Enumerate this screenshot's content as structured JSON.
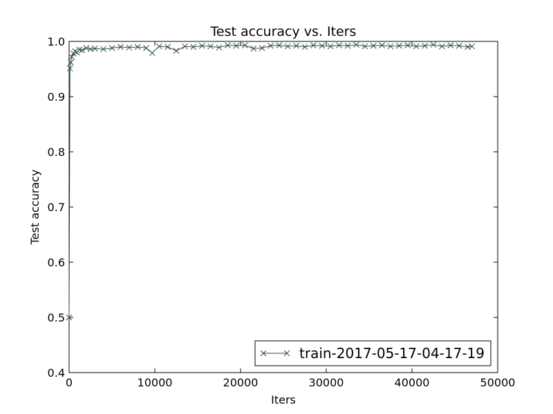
{
  "chart_data": {
    "type": "line",
    "title": "Test accuracy  vs. Iters",
    "xlabel": "Iters",
    "ylabel": "Test accuracy",
    "xlim": [
      0,
      50000
    ],
    "ylim": [
      0.4,
      1.0
    ],
    "xticks": [
      0,
      10000,
      20000,
      30000,
      40000,
      50000
    ],
    "yticks": [
      0.4,
      0.5,
      0.6,
      0.7,
      0.8,
      0.9,
      1.0
    ],
    "xtick_labels": [
      "0",
      "10000",
      "20000",
      "30000",
      "40000",
      "50000"
    ],
    "ytick_labels": [
      "0.4",
      "0.5",
      "0.6",
      "0.7",
      "0.8",
      "0.9",
      "1.0"
    ],
    "grid": false,
    "legend_position": "lower-right",
    "marker": "x",
    "series_color": "#2f4f3f",
    "series": [
      {
        "name": "train-2017-05-17-04-17-19",
        "x": [
          0,
          100,
          200,
          300,
          500,
          700,
          900,
          1200,
          1500,
          2000,
          2500,
          3000,
          4000,
          5000,
          6000,
          7000,
          8000,
          9000,
          9700,
          10500,
          11500,
          12500,
          13500,
          14500,
          15500,
          16500,
          17500,
          18500,
          19500,
          20500,
          21500,
          22500,
          23500,
          24500,
          25500,
          26500,
          27500,
          28500,
          29500,
          30500,
          31500,
          32500,
          33500,
          34500,
          35500,
          36500,
          37500,
          38500,
          39500,
          40500,
          41500,
          42500,
          43500,
          44500,
          45500,
          46500,
          47000
        ],
        "y": [
          0.5,
          0.951,
          0.962,
          0.972,
          0.978,
          0.982,
          0.98,
          0.985,
          0.984,
          0.988,
          0.986,
          0.987,
          0.986,
          0.988,
          0.99,
          0.989,
          0.99,
          0.988,
          0.979,
          0.991,
          0.99,
          0.983,
          0.991,
          0.99,
          0.992,
          0.991,
          0.989,
          0.993,
          0.992,
          0.993,
          0.987,
          0.988,
          0.992,
          0.993,
          0.991,
          0.992,
          0.99,
          0.993,
          0.992,
          0.991,
          0.993,
          0.992,
          0.994,
          0.991,
          0.992,
          0.993,
          0.991,
          0.992,
          0.993,
          0.991,
          0.992,
          0.994,
          0.991,
          0.993,
          0.992,
          0.99,
          0.991
        ]
      }
    ]
  }
}
